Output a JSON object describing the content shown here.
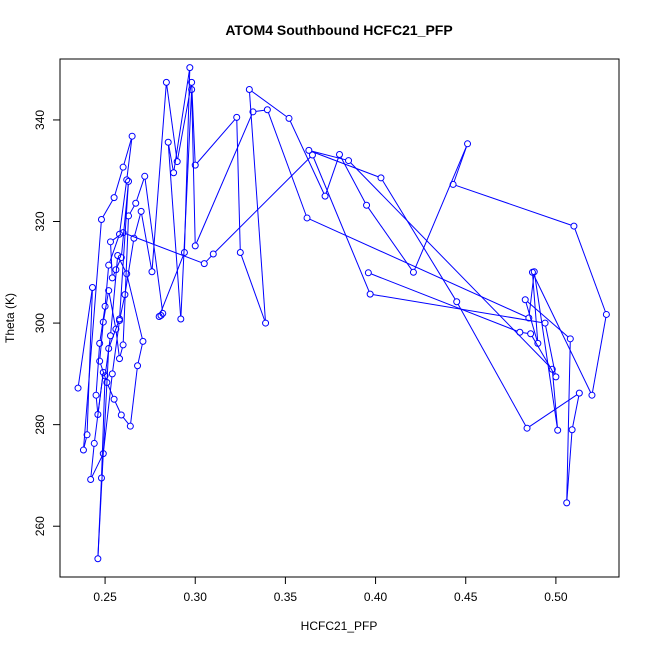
{
  "chart_data": {
    "type": "line",
    "title": "ATOM4 Southbound HCFC21_PFP",
    "xlabel": "HCFC21_PFP",
    "ylabel": "Theta (K)",
    "xlim": [
      0.225,
      0.535
    ],
    "ylim": [
      250,
      352
    ],
    "xticks": [
      0.25,
      0.3,
      0.35,
      0.4,
      0.45,
      0.5
    ],
    "xtick_labels": [
      "0.25",
      "0.30",
      "0.35",
      "0.40",
      "0.45",
      "0.50"
    ],
    "yticks": [
      260,
      280,
      300,
      320,
      340
    ],
    "ytick_labels": [
      "260",
      "280",
      "300",
      "320",
      "340"
    ],
    "grid": false,
    "legend": "none",
    "markers": "open-circle",
    "color": "#0000ff",
    "x": [
      0.235,
      0.243,
      0.24,
      0.238,
      0.248,
      0.255,
      0.26,
      0.265,
      0.262,
      0.258,
      0.252,
      0.25,
      0.247,
      0.245,
      0.246,
      0.249,
      0.244,
      0.242,
      0.249,
      0.254,
      0.258,
      0.261,
      0.266,
      0.27,
      0.276,
      0.284,
      0.29,
      0.298,
      0.3,
      0.323,
      0.325,
      0.339,
      0.33,
      0.352,
      0.372,
      0.38,
      0.395,
      0.421,
      0.451,
      0.443,
      0.51,
      0.528,
      0.52,
      0.487,
      0.49,
      0.483,
      0.508,
      0.506,
      0.509,
      0.513,
      0.484,
      0.445,
      0.403,
      0.363,
      0.385,
      0.498,
      0.501,
      0.488,
      0.485,
      0.362,
      0.34,
      0.332,
      0.3,
      0.298,
      0.292,
      0.285,
      0.288,
      0.297,
      0.294,
      0.28,
      0.281,
      0.282,
      0.272,
      0.267,
      0.263,
      0.26,
      0.258,
      0.256,
      0.252,
      0.249,
      0.247,
      0.251,
      0.255,
      0.259,
      0.264,
      0.268,
      0.271,
      0.262,
      0.257,
      0.253,
      0.25,
      0.248,
      0.246,
      0.252,
      0.258,
      0.263,
      0.259,
      0.256,
      0.254,
      0.253,
      0.26,
      0.305,
      0.31,
      0.365,
      0.397,
      0.494,
      0.5,
      0.486,
      0.48,
      0.396
    ],
    "y": [
      287.2,
      307.0,
      278.0,
      275.0,
      320.4,
      324.7,
      330.7,
      336.8,
      328.2,
      317.5,
      311.4,
      303.3,
      296.0,
      285.8,
      282.0,
      290.3,
      276.3,
      269.2,
      274.3,
      290.0,
      300.5,
      305.6,
      316.7,
      322.0,
      310.1,
      347.4,
      331.8,
      347.4,
      331.1,
      340.5,
      313.9,
      300.0,
      346.0,
      340.3,
      325.0,
      333.2,
      323.2,
      310.0,
      335.3,
      327.3,
      319.1,
      301.7,
      285.8,
      310.0,
      296.0,
      304.6,
      296.9,
      264.6,
      279.0,
      286.2,
      279.3,
      304.2,
      328.6,
      334.0,
      332.0,
      290.9,
      278.9,
      310.1,
      301.0,
      320.7,
      342.0,
      341.6,
      315.2,
      346.0,
      300.8,
      335.6,
      329.6,
      350.3,
      313.9,
      301.3,
      301.5,
      301.9,
      328.9,
      323.6,
      321.1,
      295.7,
      293.0,
      298.8,
      306.4,
      300.2,
      292.5,
      288.3,
      285.0,
      281.9,
      279.7,
      291.6,
      296.4,
      309.7,
      313.3,
      297.5,
      289.6,
      269.5,
      253.6,
      295.0,
      300.8,
      327.9,
      312.9,
      310.5,
      308.9,
      316.0,
      317.8,
      311.7,
      313.6,
      333.1,
      305.7,
      300.0,
      289.4,
      297.9,
      298.2,
      309.9
    ]
  }
}
